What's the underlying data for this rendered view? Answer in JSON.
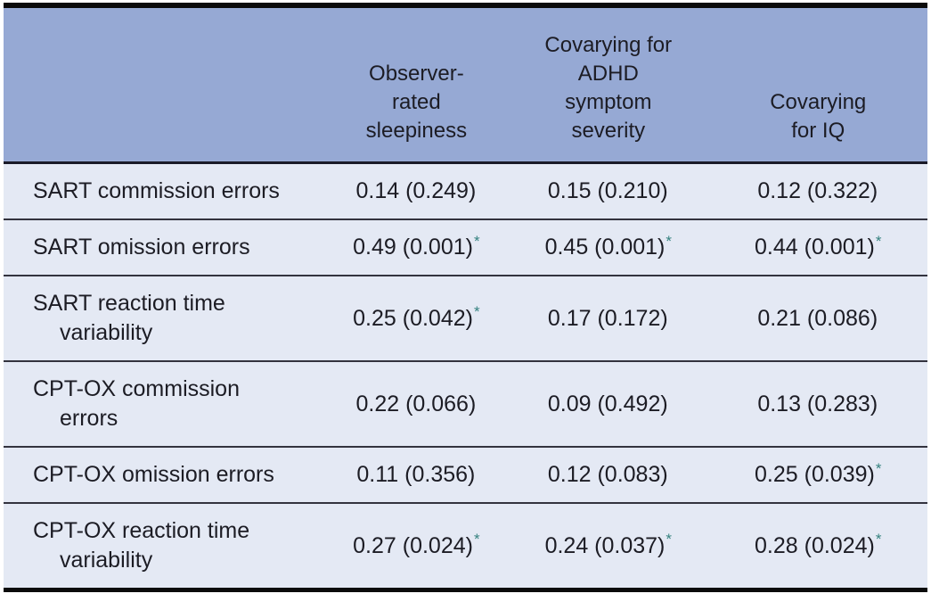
{
  "table": {
    "columns": [
      {
        "label": ""
      },
      {
        "label": "Observer-rated sleepiness"
      },
      {
        "label": "Covarying for ADHD symptom severity"
      },
      {
        "label": "Covarying for IQ"
      }
    ],
    "rows": [
      {
        "label": "SART commission errors",
        "cells": [
          {
            "value": "0.14 (0.249)",
            "star": ""
          },
          {
            "value": "0.15 (0.210)",
            "star": ""
          },
          {
            "value": "0.12 (0.322)",
            "star": ""
          }
        ]
      },
      {
        "label": "SART omission errors",
        "cells": [
          {
            "value": "0.49 (0.001)",
            "star": "*"
          },
          {
            "value": "0.45 (0.001)",
            "star": "*"
          },
          {
            "value": "0.44 (0.001)",
            "star": "*"
          }
        ]
      },
      {
        "label": "SART reaction time variability",
        "cells": [
          {
            "value": "0.25 (0.042)",
            "star": "*"
          },
          {
            "value": "0.17 (0.172)",
            "star": ""
          },
          {
            "value": "0.21 (0.086)",
            "star": ""
          }
        ]
      },
      {
        "label": "CPT-OX commission errors",
        "cells": [
          {
            "value": "0.22 (0.066)",
            "star": ""
          },
          {
            "value": "0.09 (0.492)",
            "star": ""
          },
          {
            "value": "0.13 (0.283)",
            "star": ""
          }
        ]
      },
      {
        "label": "CPT-OX omission errors",
        "cells": [
          {
            "value": "0.11 (0.356)",
            "star": ""
          },
          {
            "value": "0.12 (0.083)",
            "star": ""
          },
          {
            "value": "0.25 (0.039)",
            "star": "*"
          }
        ]
      },
      {
        "label": "CPT-OX reaction time variability",
        "cells": [
          {
            "value": "0.27 (0.024)",
            "star": "*"
          },
          {
            "value": "0.24 (0.037)",
            "star": "*"
          },
          {
            "value": "0.28 (0.024)",
            "star": "*"
          }
        ]
      }
    ]
  },
  "colors": {
    "header_background": "#96a9d4",
    "row_background": "#e4e9f4",
    "heavy_rule": "#0b0b0b",
    "light_rule": "#33333e",
    "text": "#1c1c24",
    "significance_star": "#35827f"
  },
  "legend": {
    "star_meaning": "*"
  }
}
